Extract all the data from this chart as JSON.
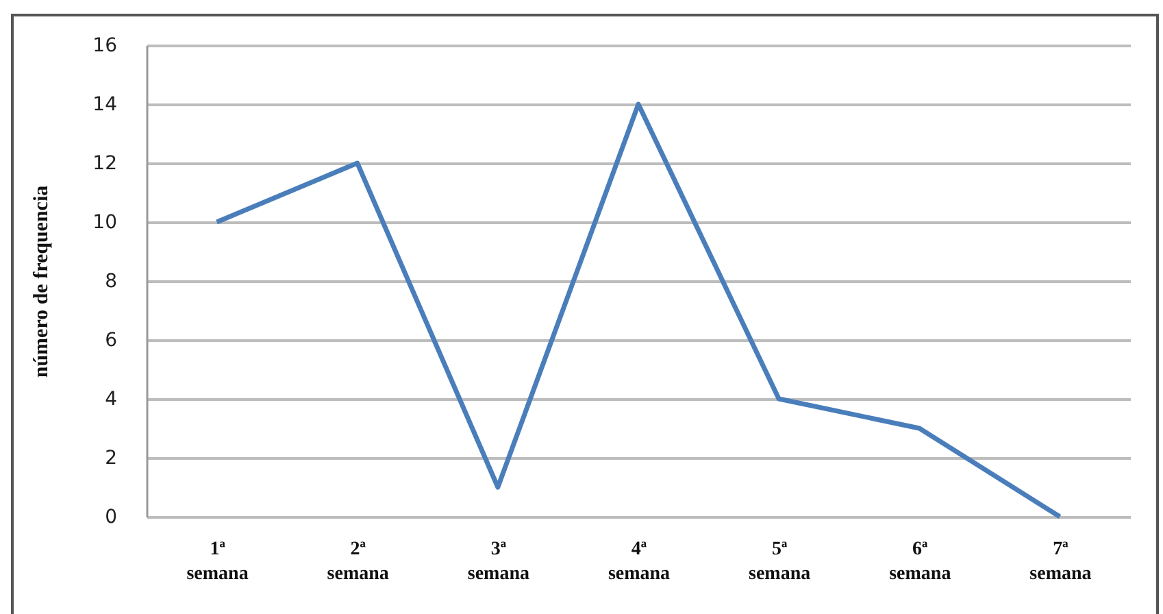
{
  "chart_data": {
    "type": "line",
    "ylabel": "número de frequencia",
    "categories": [
      "1ª semana",
      "2ª semana",
      "3ª semana",
      "4ª semana",
      "5ª semana",
      "6ª semana",
      "7ª semana"
    ],
    "series": [
      {
        "color": "#4a7ebb",
        "values": [
          10,
          12,
          1,
          14,
          4,
          3,
          0
        ]
      }
    ],
    "ylim": [
      0,
      16
    ],
    "yticks": [
      0,
      2,
      4,
      6,
      8,
      10,
      12,
      14,
      16
    ],
    "grid": "y",
    "legend": false,
    "marker": "none"
  }
}
